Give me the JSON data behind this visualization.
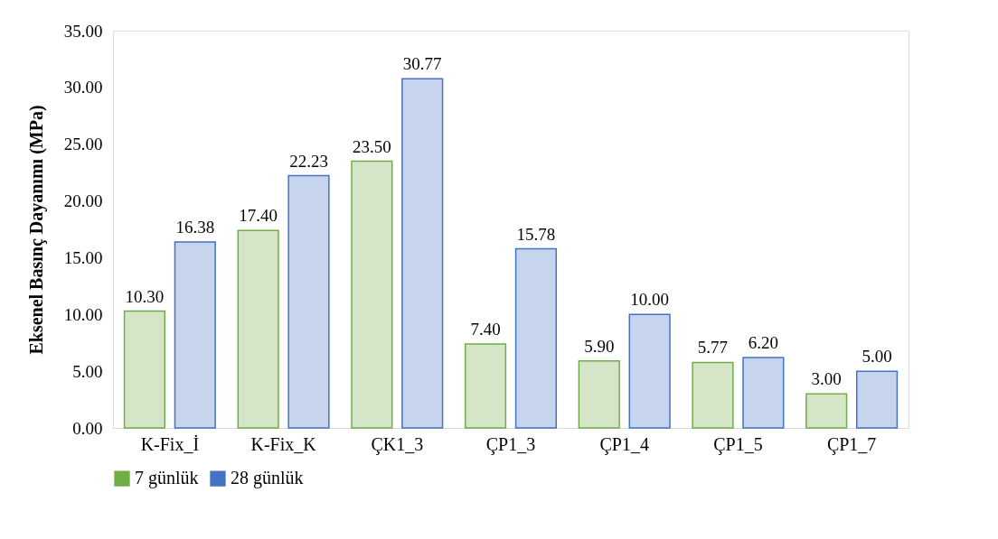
{
  "chart_data": {
    "type": "bar",
    "ylabel": "Eksenel Basınç Dayanımı (MPa)",
    "categories": [
      "K-Fix_İ",
      "K-Fix_K",
      "ÇK1_3",
      "ÇP1_3",
      "ÇP1_4",
      "ÇP1_5",
      "ÇP1_7"
    ],
    "series": [
      {
        "name": "7 günlük",
        "color": "#70ad47",
        "values": [
          10.3,
          17.4,
          23.5,
          7.4,
          5.9,
          5.77,
          3.0
        ],
        "value_labels": [
          "10.30",
          "17.40",
          "23.50",
          "7.40",
          "5.90",
          "5.77",
          "3.00"
        ]
      },
      {
        "name": "28 günlük",
        "color": "#4472c4",
        "values": [
          16.38,
          22.23,
          30.77,
          15.78,
          10.0,
          6.2,
          5.0
        ],
        "value_labels": [
          "16.38",
          "22.23",
          "30.77",
          "15.78",
          "10.00",
          "6.20",
          "5.00"
        ]
      }
    ],
    "ylim": [
      0,
      35
    ],
    "yticks": [
      {
        "value": 0,
        "label": "0.00"
      },
      {
        "value": 5,
        "label": "5.00"
      },
      {
        "value": 10,
        "label": "10.00"
      },
      {
        "value": 15,
        "label": "15.00"
      },
      {
        "value": 20,
        "label": "20.00"
      },
      {
        "value": 25,
        "label": "25.00"
      },
      {
        "value": 30,
        "label": "30.00"
      },
      {
        "value": 35,
        "label": "35.00"
      }
    ],
    "legend": "bottom",
    "grid": false
  }
}
